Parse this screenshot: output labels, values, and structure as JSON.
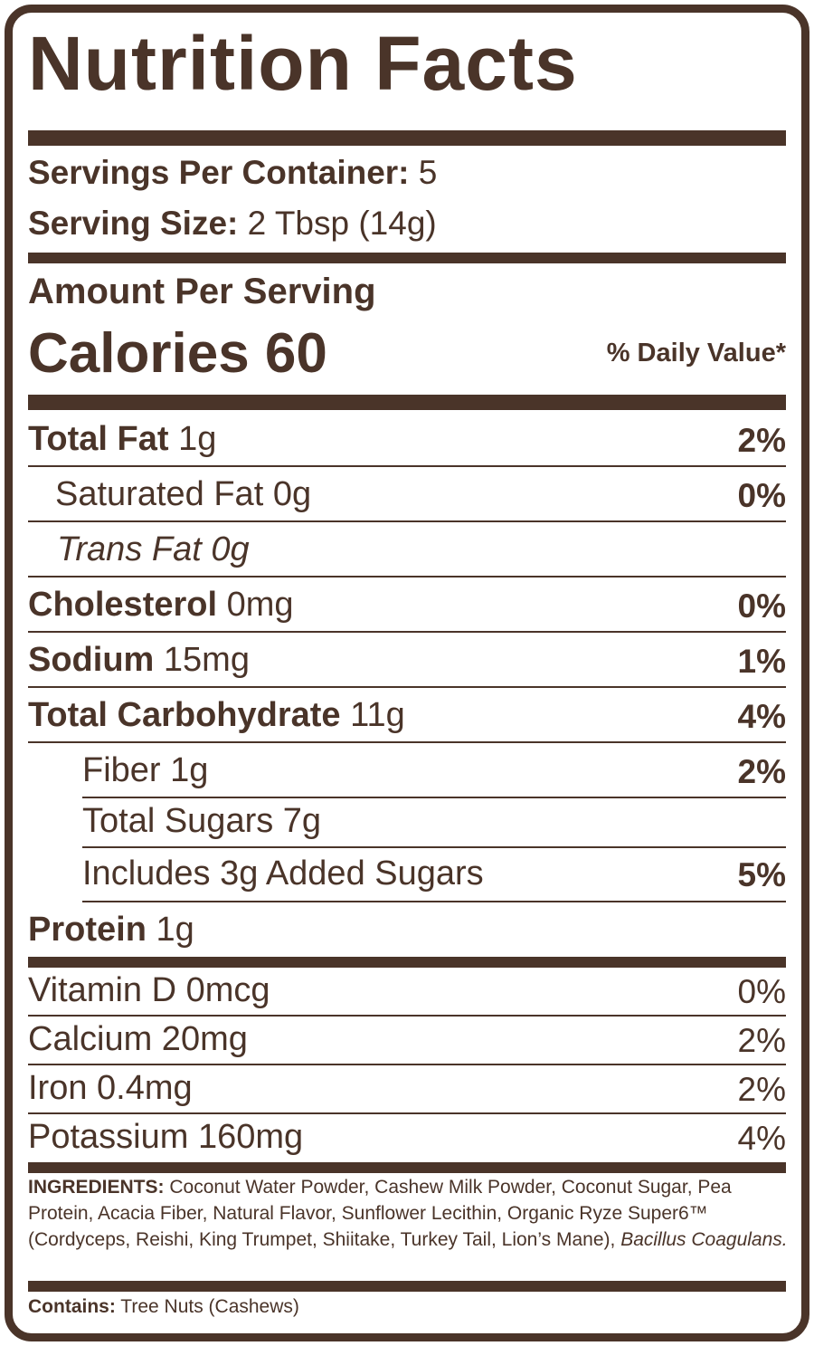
{
  "title": "Nutrition Facts",
  "servings": {
    "label": "Servings Per Container:",
    "value": "5"
  },
  "serving_size": {
    "label": "Serving Size:",
    "value": "2 Tbsp (14g)"
  },
  "amount_per_serving": "Amount Per Serving",
  "calories": {
    "label": "Calories",
    "value": "60"
  },
  "daily_value_header": "% Daily Value*",
  "nutrients": [
    {
      "name": "Total Fat",
      "amount": "1g",
      "dv": "2%"
    },
    {
      "name": "Saturated Fat",
      "amount": "0g",
      "dv": "0%"
    },
    {
      "name": "Trans Fat",
      "amount": "0g",
      "dv": ""
    },
    {
      "name": "Cholesterol",
      "amount": "0mg",
      "dv": "0%"
    },
    {
      "name": "Sodium",
      "amount": "15mg",
      "dv": "1%"
    },
    {
      "name": "Total Carbohydrate",
      "amount": "11g",
      "dv": "4%"
    },
    {
      "name": "Fiber",
      "amount": "1g",
      "dv": "2%"
    },
    {
      "name": "Total Sugars",
      "amount": "7g",
      "dv": ""
    },
    {
      "name": "Includes 3g Added Sugars",
      "amount": "",
      "dv": "5%"
    },
    {
      "name": "Protein",
      "amount": "1g",
      "dv": ""
    }
  ],
  "vitamins": [
    {
      "label": "Vitamin D 0mcg",
      "dv": "0%"
    },
    {
      "label": "Calcium 20mg",
      "dv": "2%"
    },
    {
      "label": "Iron 0.4mg",
      "dv": "2%"
    },
    {
      "label": "Potassium 160mg",
      "dv": "4%"
    }
  ],
  "ingredients": {
    "label": "INGREDIENTS:",
    "text": "Coconut Water Powder, Cashew Milk Powder, Coconut Sugar, Pea Protein, Acacia Fiber, Natural Flavor, Sunflower Lecithin, Organic Ryze Super6™ (Cordyceps, Reishi, King Trumpet, Shiitake, Turkey Tail, Lion’s Mane),",
    "italic": "Bacillus Coagulans."
  },
  "contains": {
    "label": "Contains:",
    "text": "Tree Nuts (Cashews)"
  },
  "colors": {
    "brown": "#4a3429",
    "background": "#ffffff"
  }
}
